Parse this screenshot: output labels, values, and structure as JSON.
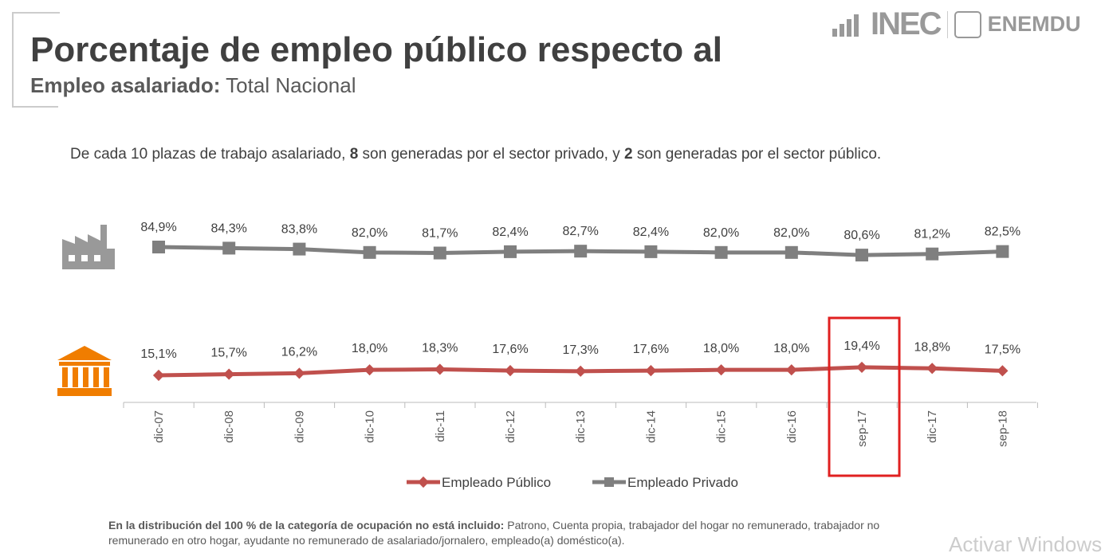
{
  "header": {
    "title": "Porcentaje de empleo público respecto al",
    "subtitle_bold": "Empleo asalariado:",
    "subtitle_rest": " Total Nacional"
  },
  "logo": {
    "inec": "INEC",
    "enemdu": "ENEMDU"
  },
  "description": {
    "p1": "De cada 10 plazas de trabajo asalariado, ",
    "n1": "8",
    "p2": " son generadas por el sector privado, y ",
    "n2": "2",
    "p3": " son generadas por el sector público."
  },
  "footnote": {
    "bold": "En la distribución del 100 % de la categoría de ocupación no está incluido:",
    "rest": " Patrono, Cuenta propia, trabajador del hogar no remunerado, trabajador no remunerado en otro hogar, ayudante no remunerado de asalariado/jornalero, empleado(a) doméstico(a)."
  },
  "watermark": "Activar Windows",
  "chart_data": {
    "type": "line",
    "categories": [
      "dic-07",
      "dic-08",
      "dic-09",
      "dic-10",
      "dic-11",
      "dic-12",
      "dic-13",
      "dic-14",
      "dic-15",
      "dic-16",
      "sep-17",
      "dic-17",
      "sep-18"
    ],
    "series": [
      {
        "name": "Empleado Público",
        "color": "#C0504D",
        "values": [
          15.1,
          15.7,
          16.2,
          18.0,
          18.3,
          17.6,
          17.3,
          17.6,
          18.0,
          18.0,
          19.4,
          18.8,
          17.5
        ],
        "labels": [
          "15,1%",
          "15,7%",
          "16,2%",
          "18,0%",
          "18,3%",
          "17,6%",
          "17,3%",
          "17,6%",
          "18,0%",
          "18,0%",
          "19,4%",
          "18,8%",
          "17,5%"
        ]
      },
      {
        "name": "Empleado Privado",
        "color": "#7F7F7F",
        "values": [
          84.9,
          84.3,
          83.8,
          82.0,
          81.7,
          82.4,
          82.7,
          82.4,
          82.0,
          82.0,
          80.6,
          81.2,
          82.5
        ],
        "labels": [
          "84,9%",
          "84,3%",
          "83,8%",
          "82,0%",
          "81,7%",
          "82,4%",
          "82,7%",
          "82,4%",
          "82,0%",
          "82,0%",
          "80,6%",
          "81,2%",
          "82,5%"
        ]
      }
    ],
    "highlight": "sep-17",
    "highlight_color": "#E02020"
  }
}
